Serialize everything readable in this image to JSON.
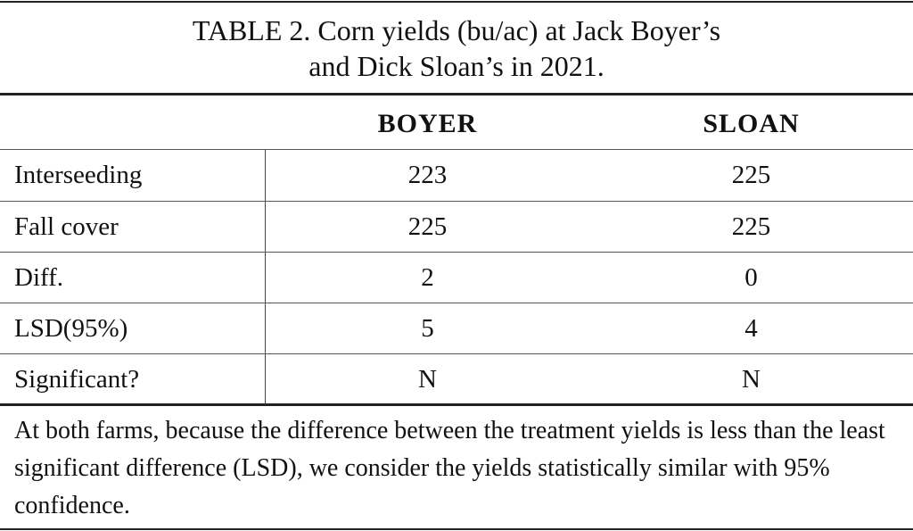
{
  "title_lines": [
    "TABLE 2. Corn yields (bu/ac) at Jack Boyer’s",
    "and Dick Sloan’s in 2021."
  ],
  "table": {
    "header": [
      "",
      "BOYER",
      "SLOAN"
    ],
    "rows": [
      [
        "Interseeding",
        "223",
        "225"
      ],
      [
        "Fall cover",
        "225",
        "225"
      ],
      [
        "Diff.",
        "2",
        "0"
      ],
      [
        "LSD(95%)",
        "5",
        "4"
      ],
      [
        "Significant?",
        "N",
        "N"
      ]
    ]
  },
  "footnote": "At both farms, because the difference between the treatment yields is less than the least significant difference (LSD), we consider the yields statistically similar with 95% confidence."
}
